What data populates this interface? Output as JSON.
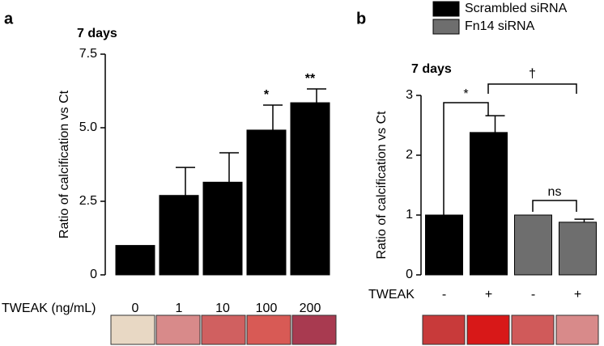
{
  "chart_data": [
    {
      "type": "bar",
      "panel_label": "a",
      "title": "7 days",
      "y_label": "Ratio of calcification vs Ct",
      "x_label": "TWEAK (ng/mL)",
      "categories": [
        "0",
        "1",
        "10",
        "100",
        "200"
      ],
      "values": [
        1.0,
        2.7,
        3.15,
        4.92,
        5.85
      ],
      "errors": [
        null,
        0.95,
        1.0,
        0.85,
        0.47
      ],
      "color": "#000000",
      "significance": [
        null,
        null,
        null,
        "*",
        "**"
      ],
      "ylim": [
        0,
        7.5
      ],
      "yticks": [
        0,
        2.5,
        {
          "value": 5,
          "label": "5.0"
        },
        7.5
      ]
    },
    {
      "type": "bar",
      "panel_label": "b",
      "title": "7 days",
      "y_label": "Ratio of calcification vs Ct",
      "x_label": "TWEAK",
      "categories": [
        "-",
        "+",
        "-",
        "+"
      ],
      "series": [
        {
          "name": "Scrambled siRNA",
          "color": "#000000",
          "values": [
            1.0,
            2.38,
            null,
            null
          ],
          "errors": [
            null,
            0.28,
            null,
            null
          ]
        },
        {
          "name": "Fn14 siRNA",
          "color": "#6e6e6e",
          "values": [
            null,
            null,
            1.0,
            0.88
          ],
          "errors": [
            null,
            null,
            null,
            0.05
          ]
        }
      ],
      "annotations": [
        "*",
        "†",
        "ns"
      ],
      "ylim": [
        0,
        3
      ],
      "yticks": [
        0,
        1,
        2,
        3
      ]
    }
  ]
}
